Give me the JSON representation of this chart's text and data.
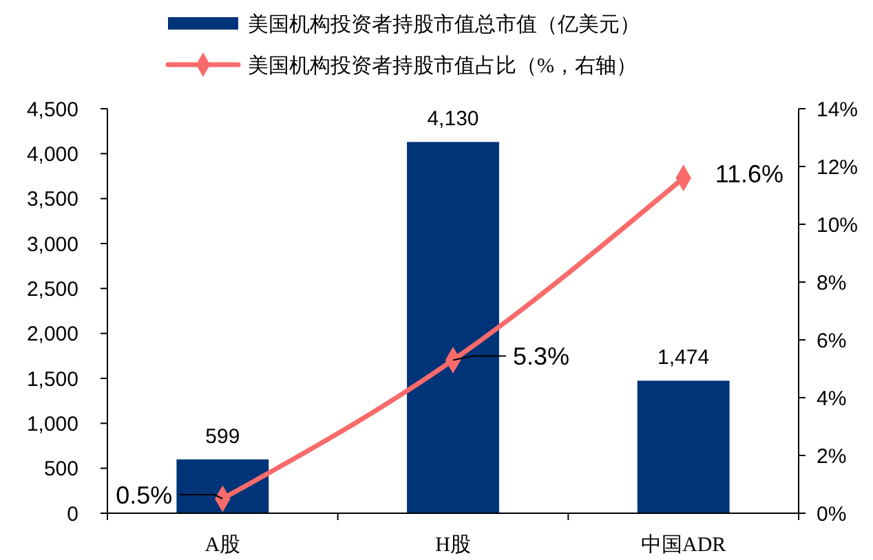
{
  "chart_data": {
    "type": "bar",
    "categories": [
      "A股",
      "H股",
      "中国ADR"
    ],
    "series": [
      {
        "name": "美国机构投资者持股市值总市值（亿美元）",
        "color": "#003478",
        "values": [
          599,
          4130,
          1474
        ],
        "value_labels": [
          "599",
          "4,130",
          "1,474"
        ]
      },
      {
        "name": "美国机构投资者持股市值占比（%，右轴）",
        "type": "line",
        "axis": "y2",
        "color": "#f96b6b",
        "values": [
          0.5,
          5.3,
          11.6
        ],
        "value_labels": [
          "0.5%",
          "5.3%",
          "11.6%"
        ]
      }
    ],
    "ylim": [
      0,
      4500
    ],
    "yticks": [
      0,
      500,
      {
        "value": 1000,
        "label": "1,000"
      },
      {
        "value": 1500,
        "label": "1,500"
      },
      {
        "value": 2000,
        "label": "2,000"
      },
      {
        "value": 2500,
        "label": "2,500"
      },
      {
        "value": 3000,
        "label": "3,000"
      },
      {
        "value": 3500,
        "label": "3,500"
      },
      {
        "value": 4000,
        "label": "4,000"
      },
      {
        "value": 4500,
        "label": "4,500"
      }
    ],
    "y2lim": [
      0,
      14
    ],
    "y2ticks": [
      {
        "value": 0,
        "label": "0%"
      },
      {
        "value": 2,
        "label": "2%"
      },
      {
        "value": 4,
        "label": "4%"
      },
      {
        "value": 6,
        "label": "6%"
      },
      {
        "value": 8,
        "label": "8%"
      },
      {
        "value": 10,
        "label": "10%"
      },
      {
        "value": 12,
        "label": "12%"
      },
      {
        "value": 14,
        "label": "14%"
      }
    ],
    "legend": "top",
    "marker": "diamond"
  }
}
